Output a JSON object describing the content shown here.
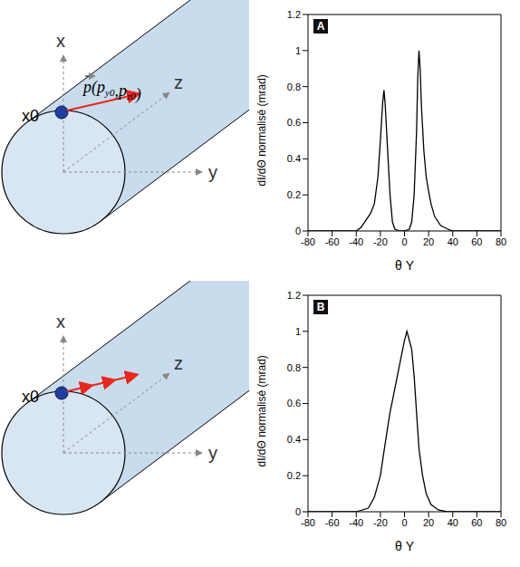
{
  "diagrams": [
    {
      "axis_labels": {
        "x": "x",
        "y": "y",
        "z": "z"
      },
      "particle_label": "x0",
      "momentum_label": {
        "vector": "p",
        "open": "(",
        "components": [
          [
            "p",
            "y0"
          ],
          [
            "p",
            "z0"
          ]
        ],
        "separator": ",",
        "close": ")"
      }
    },
    {
      "axis_labels": {
        "x": "x",
        "y": "y",
        "z": "z"
      },
      "particle_label": "x0"
    }
  ],
  "chart_data": [
    {
      "type": "line",
      "panel_label": "A",
      "x_label": "θ Y",
      "y_label": "dI/dΘ normalisé (mrad)",
      "color": "#000000",
      "grid": false,
      "xlim": [
        -80,
        80
      ],
      "xticks": [
        -80,
        -60,
        -40,
        -20,
        0,
        20,
        40,
        60,
        80
      ],
      "ylim": [
        0,
        1.2
      ],
      "yticks": [
        0,
        0.2,
        0.4,
        0.6,
        0.8,
        1,
        1.2
      ],
      "x": [
        -80,
        -60,
        -40,
        -36,
        -32,
        -28,
        -25,
        -22,
        -20,
        -18,
        -17,
        -16,
        -14,
        -12,
        -10,
        -8,
        -4,
        0,
        4,
        6,
        8,
        10,
        11,
        12,
        13,
        14,
        16,
        18,
        20,
        22,
        25,
        30,
        36,
        40,
        60,
        80
      ],
      "values": [
        0,
        0,
        0,
        0.02,
        0.06,
        0.1,
        0.15,
        0.3,
        0.5,
        0.72,
        0.78,
        0.7,
        0.45,
        0.2,
        0.05,
        0.01,
        0,
        0,
        0.01,
        0.05,
        0.2,
        0.55,
        0.85,
        1.0,
        0.9,
        0.7,
        0.45,
        0.3,
        0.22,
        0.15,
        0.08,
        0.03,
        0.01,
        0,
        0,
        0
      ]
    },
    {
      "type": "line",
      "panel_label": "B",
      "x_label": "θ Y",
      "y_label": "dI/dΘ normalisé (mrad)",
      "color": "#000000",
      "grid": false,
      "xlim": [
        -80,
        80
      ],
      "xticks": [
        -80,
        -60,
        -40,
        -20,
        0,
        20,
        40,
        60,
        80
      ],
      "ylim": [
        0,
        1.2
      ],
      "yticks": [
        0,
        0.2,
        0.4,
        0.6,
        0.8,
        1,
        1.2
      ],
      "x": [
        -80,
        -60,
        -40,
        -30,
        -25,
        -20,
        -16,
        -12,
        -9,
        -6,
        -3,
        0,
        2,
        4,
        6,
        8,
        10,
        12,
        15,
        18,
        22,
        28,
        35,
        60,
        80
      ],
      "values": [
        0,
        0,
        0,
        0.02,
        0.08,
        0.2,
        0.38,
        0.55,
        0.65,
        0.75,
        0.85,
        0.95,
        1.0,
        0.95,
        0.9,
        0.75,
        0.55,
        0.35,
        0.2,
        0.1,
        0.04,
        0.01,
        0,
        0,
        0
      ]
    }
  ]
}
